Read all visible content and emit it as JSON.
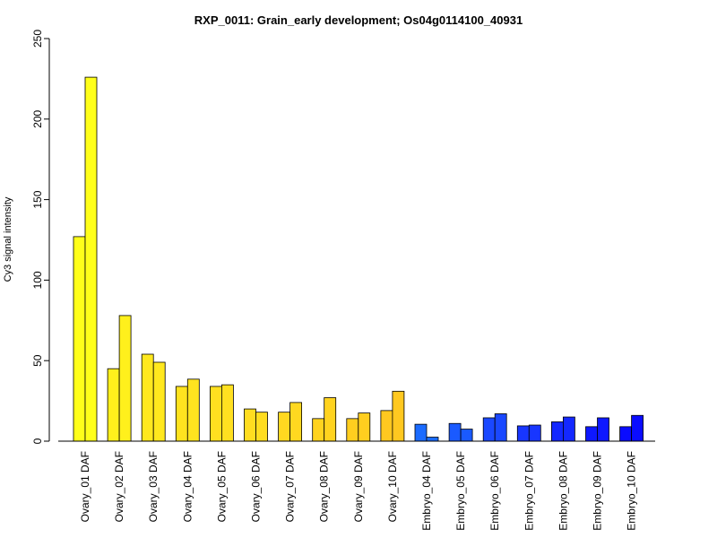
{
  "chart_data": {
    "type": "bar",
    "title": "RXP_0011: Grain_early development; Os04g0114100_40931",
    "xlabel": "",
    "ylabel": "Cy3 signal intensity",
    "ylim": [
      0,
      250
    ],
    "yticks": [
      0,
      50,
      100,
      150,
      200,
      250
    ],
    "categories": [
      "Ovary_01 DAF",
      "Ovary_02 DAF",
      "Ovary_03 DAF",
      "Ovary_04 DAF",
      "Ovary_05 DAF",
      "Ovary_06 DAF",
      "Ovary_07 DAF",
      "Ovary_08 DAF",
      "Ovary_09 DAF",
      "Ovary_10 DAF",
      "Embryo_04 DAF",
      "Embryo_05 DAF",
      "Embryo_06 DAF",
      "Embryo_07 DAF",
      "Embryo_08 DAF",
      "Embryo_09 DAF",
      "Embryo_10 DAF"
    ],
    "series": [
      {
        "values": [
          127,
          45,
          54,
          34,
          34,
          20,
          18,
          14,
          14,
          19,
          10.5,
          11,
          14.5,
          9.5,
          12,
          9,
          9
        ]
      },
      {
        "values": [
          226,
          78,
          49,
          38.5,
          35,
          18,
          24,
          27,
          17.5,
          31,
          2.5,
          7.5,
          17,
          10,
          15,
          14.5,
          16
        ]
      }
    ],
    "colors": [
      "#ffff1a",
      "#fff01c",
      "#ffe81e",
      "#ffe31f",
      "#ffe020",
      "#ffdd20",
      "#ffd820",
      "#ffd31f",
      "#ffce1f",
      "#ffc820",
      "#1a6bff",
      "#1a5aff",
      "#1a48ff",
      "#1836ff",
      "#1428ff",
      "#0e18ff",
      "#0a0cff"
    ],
    "grid": false,
    "legend": "none"
  }
}
